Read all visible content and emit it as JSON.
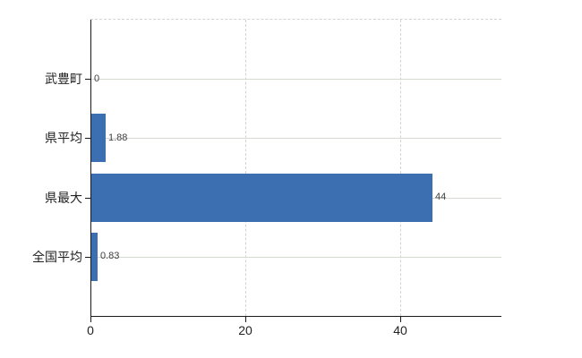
{
  "chart_data": {
    "type": "bar",
    "orientation": "horizontal",
    "categories": [
      "武豊町",
      "県平均",
      "県最大",
      "全国平均"
    ],
    "values": [
      0,
      1.88,
      44,
      0.83
    ],
    "value_labels": [
      "0",
      "1.88",
      "44",
      "0.83"
    ],
    "x_ticks": [
      0,
      20,
      40
    ],
    "x_tick_labels": [
      "0",
      "20",
      "40"
    ],
    "xlim": [
      0,
      53
    ],
    "bar_color": "#3c6fb1",
    "axis_color": "#1a1a1a",
    "tick_label_color": "#222222",
    "category_label_color": "#222222",
    "value_label_color": "#3f3f3f",
    "grid": {
      "horizontal_style": "solid",
      "horizontal_color": "#d5dad3",
      "vertical_style": "dashed",
      "vertical_color": "#d3d3d3",
      "top_border_style": "dashed",
      "top_border_color": "#d3d3d3"
    },
    "legend": null,
    "background": "#ffffff"
  }
}
